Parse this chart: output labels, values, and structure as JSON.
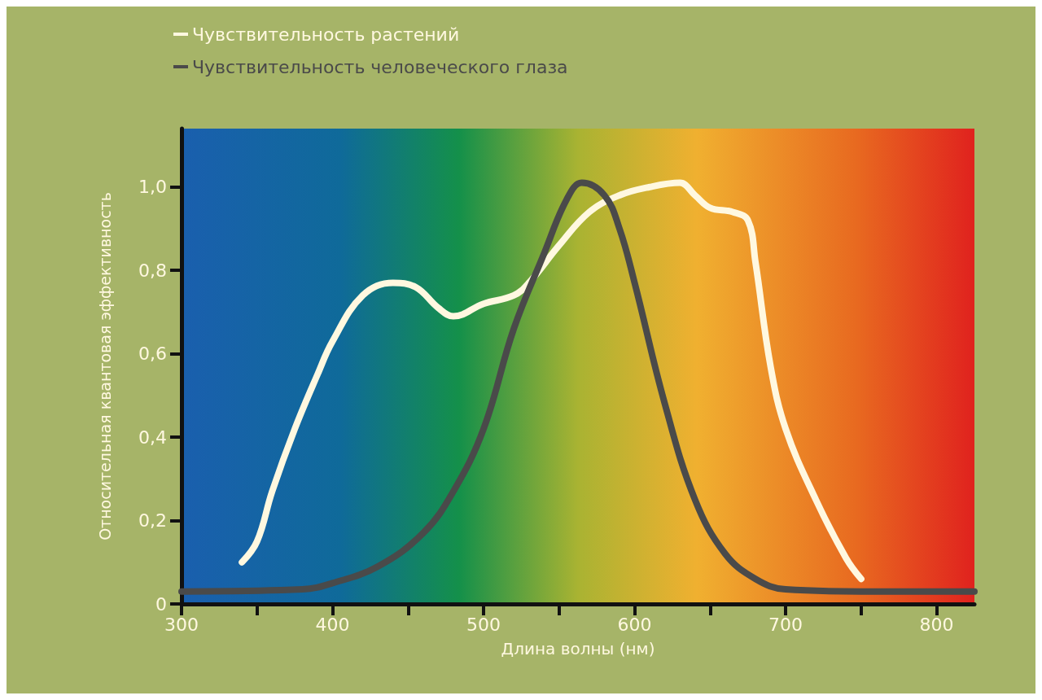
{
  "chart_data": {
    "type": "line",
    "xlabel": "Длина волны (нм)",
    "ylabel": "Относительная квантовая эффективность",
    "xlim": [
      300,
      825
    ],
    "xticks": [
      300,
      {
        "value": 350,
        "label": null
      },
      400,
      {
        "value": 450,
        "label": null
      },
      500,
      {
        "value": 550,
        "label": null
      },
      600,
      {
        "value": 650,
        "label": null
      },
      700,
      {
        "value": 750,
        "label": null
      },
      800
    ],
    "ylim": [
      0,
      1.14
    ],
    "yticks": [
      0,
      {
        "value": 0.2,
        "label": "0,2"
      },
      {
        "value": 0.4,
        "label": "0,4"
      },
      {
        "value": 0.6,
        "label": "0,6"
      },
      {
        "value": 0.8,
        "label": "0,8"
      },
      {
        "value": 1.0,
        "label": "1,0"
      }
    ],
    "grid": false,
    "legend": "top left",
    "marker": "none",
    "line_style": "solid",
    "series": [
      {
        "name": "Чувствительность растений",
        "color": "#fff8e0",
        "x": [
          340,
          350,
          360,
          375,
          390,
          400,
          420,
          440,
          455,
          470,
          480,
          500,
          520,
          530,
          550,
          570,
          590,
          610,
          630,
          640,
          650,
          665,
          675,
          680,
          690,
          700,
          720,
          740,
          750
        ],
        "values": [
          0.1,
          0.15,
          0.27,
          0.42,
          0.55,
          0.63,
          0.74,
          0.77,
          0.76,
          0.71,
          0.69,
          0.72,
          0.74,
          0.77,
          0.86,
          0.94,
          0.98,
          1.0,
          1.01,
          0.98,
          0.95,
          0.94,
          0.92,
          0.82,
          0.57,
          0.42,
          0.25,
          0.11,
          0.06
        ]
      },
      {
        "name": "Чувствительность человеческого глаза",
        "color": "#4a4a4a",
        "x": [
          300,
          380,
          400,
          430,
          460,
          480,
          500,
          520,
          540,
          555,
          565,
          580,
          590,
          600,
          620,
          640,
          660,
          680,
          700,
          750,
          825
        ],
        "values": [
          0.03,
          0.035,
          0.05,
          0.09,
          0.17,
          0.27,
          0.42,
          0.66,
          0.84,
          0.97,
          1.01,
          0.98,
          0.9,
          0.77,
          0.48,
          0.25,
          0.12,
          0.06,
          0.035,
          0.03,
          0.03
        ]
      }
    ]
  }
}
